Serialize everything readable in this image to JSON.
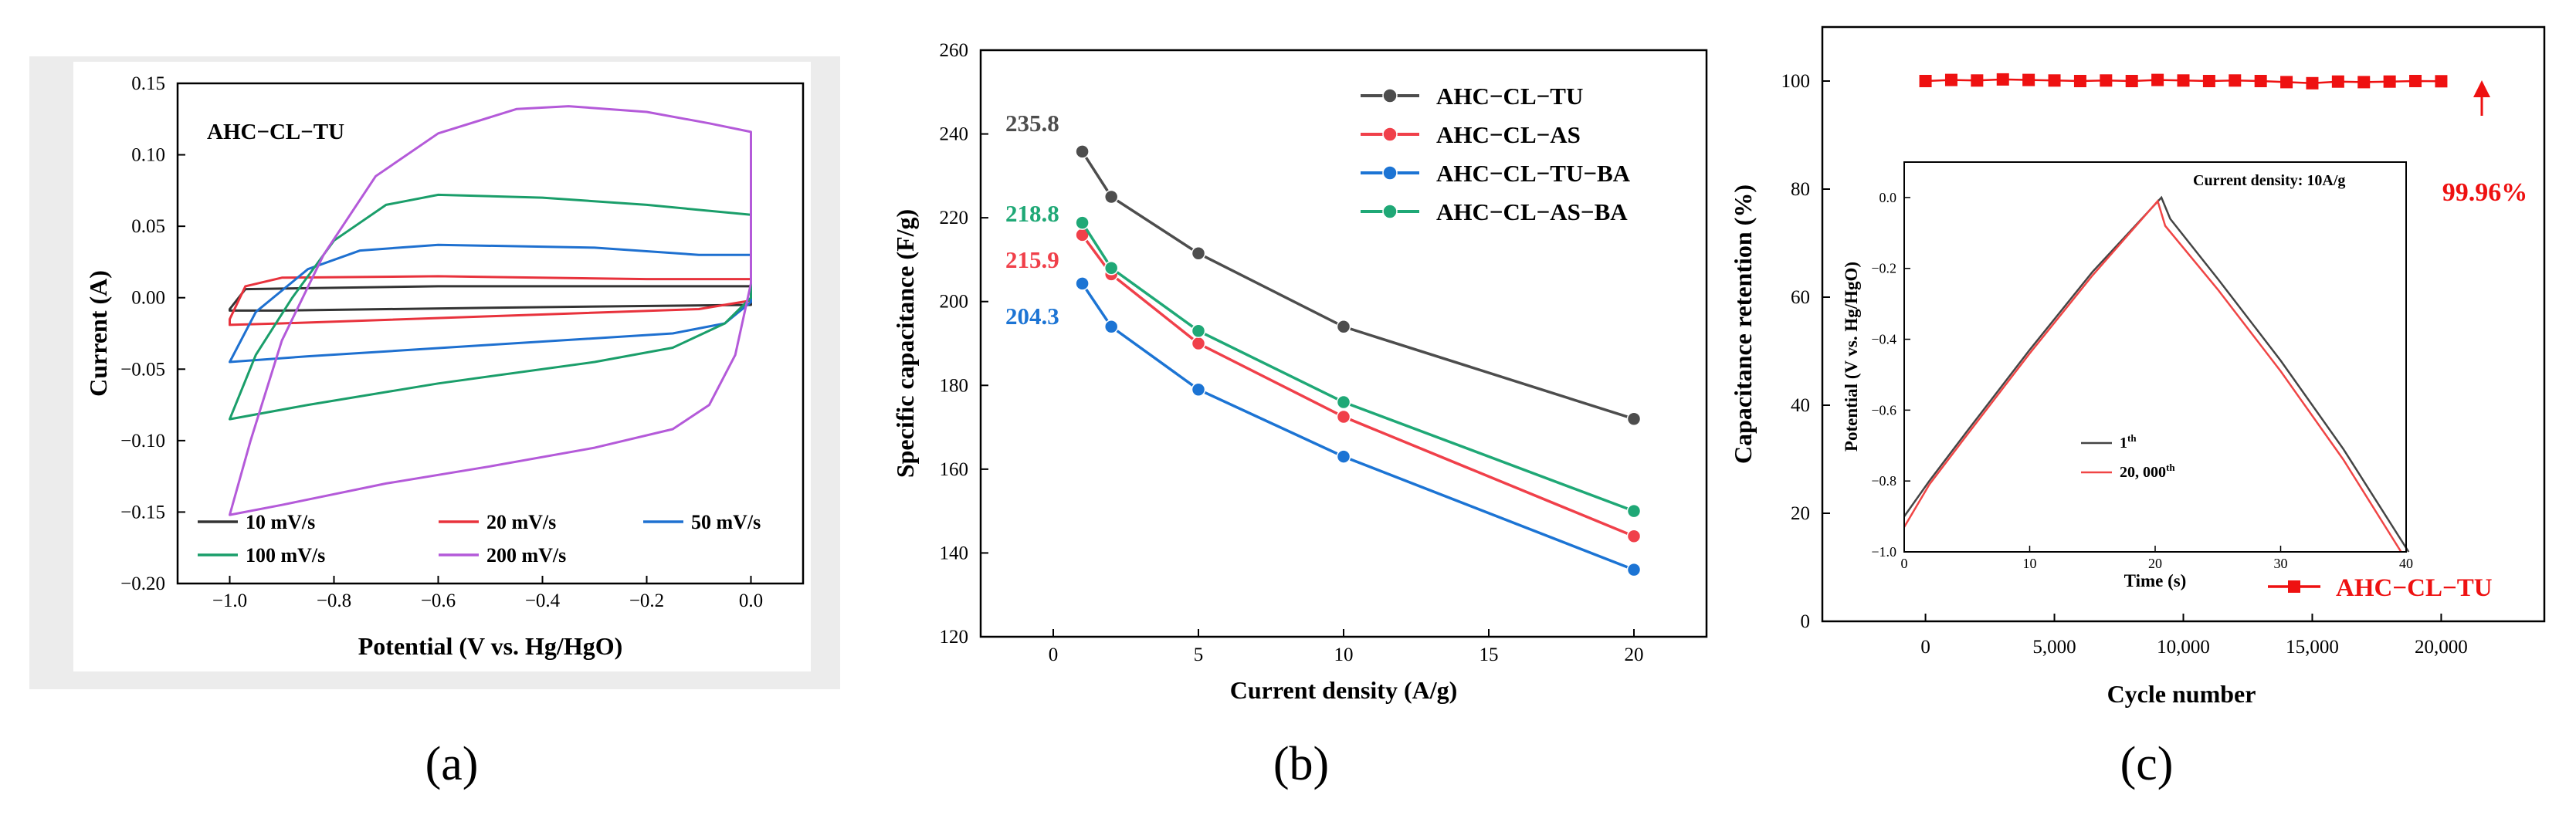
{
  "panels": {
    "a": {
      "caption": "(a)"
    },
    "b": {
      "caption": "(b)"
    },
    "c": {
      "caption": "(c)"
    }
  },
  "chart_data": [
    {
      "type": "line",
      "panel": "a",
      "title": "AHC−CL−TU",
      "xlabel": "Potential (V vs. Hg/HgO)",
      "ylabel": "Current (A)",
      "xlim": [
        -1.1,
        0.1
      ],
      "ylim": [
        -0.2,
        0.15
      ],
      "xticks": [
        -1.0,
        -0.8,
        -0.6,
        -0.4,
        -0.2,
        0.0
      ],
      "xtick_labels": [
        "−1.0",
        "−0.8",
        "−0.6",
        "−0.4",
        "−0.2",
        "0.0"
      ],
      "yticks": [
        0.15,
        0.1,
        0.05,
        0.0,
        -0.05,
        -0.1,
        -0.15,
        -0.2
      ],
      "ytick_labels": [
        "0.15",
        "0.10",
        "0.05",
        "0.00",
        "−0.05",
        "−0.10",
        "−0.15",
        "−0.20"
      ],
      "legend_position": "bottom",
      "series": [
        {
          "name": "10 mV/s",
          "color": "#333333",
          "upper": [
            [
              -1.0,
              -0.008
            ],
            [
              -0.97,
              0.006
            ],
            [
              -0.6,
              0.008
            ],
            [
              -0.2,
              0.008
            ],
            [
              0.0,
              0.008
            ]
          ],
          "lower": [
            [
              0.0,
              -0.005
            ],
            [
              -0.5,
              -0.007
            ],
            [
              -0.9,
              -0.009
            ],
            [
              -1.0,
              -0.009
            ]
          ]
        },
        {
          "name": "20 mV/s",
          "color": "#e8323c",
          "upper": [
            [
              -1.0,
              -0.015
            ],
            [
              -0.97,
              0.008
            ],
            [
              -0.9,
              0.014
            ],
            [
              -0.6,
              0.015
            ],
            [
              -0.2,
              0.013
            ],
            [
              0.0,
              0.013
            ]
          ],
          "lower": [
            [
              0.0,
              -0.002
            ],
            [
              -0.1,
              -0.008
            ],
            [
              -0.5,
              -0.013
            ],
            [
              -0.9,
              -0.018
            ],
            [
              -1.0,
              -0.019
            ]
          ]
        },
        {
          "name": "50 mV/s",
          "color": "#1e70d0",
          "upper": [
            [
              -1.0,
              -0.045
            ],
            [
              -0.95,
              -0.01
            ],
            [
              -0.85,
              0.02
            ],
            [
              -0.75,
              0.033
            ],
            [
              -0.6,
              0.037
            ],
            [
              -0.3,
              0.035
            ],
            [
              -0.1,
              0.03
            ],
            [
              0.0,
              0.03
            ]
          ],
          "lower": [
            [
              0.0,
              -0.003
            ],
            [
              -0.05,
              -0.018
            ],
            [
              -0.15,
              -0.025
            ],
            [
              -0.5,
              -0.033
            ],
            [
              -0.85,
              -0.041
            ],
            [
              -1.0,
              -0.045
            ]
          ]
        },
        {
          "name": "100 mV/s",
          "color": "#1a9e6a",
          "upper": [
            [
              -1.0,
              -0.085
            ],
            [
              -0.95,
              -0.04
            ],
            [
              -0.88,
              0.0
            ],
            [
              -0.8,
              0.04
            ],
            [
              -0.7,
              0.065
            ],
            [
              -0.6,
              0.072
            ],
            [
              -0.4,
              0.07
            ],
            [
              -0.2,
              0.065
            ],
            [
              0.0,
              0.058
            ]
          ],
          "lower": [
            [
              0.0,
              0.0
            ],
            [
              -0.05,
              -0.018
            ],
            [
              -0.15,
              -0.035
            ],
            [
              -0.3,
              -0.045
            ],
            [
              -0.6,
              -0.06
            ],
            [
              -0.85,
              -0.075
            ],
            [
              -1.0,
              -0.085
            ]
          ]
        },
        {
          "name": "200 mV/s",
          "color": "#b45ad9",
          "upper": [
            [
              -1.0,
              -0.152
            ],
            [
              -0.96,
              -0.1
            ],
            [
              -0.9,
              -0.03
            ],
            [
              -0.82,
              0.03
            ],
            [
              -0.72,
              0.085
            ],
            [
              -0.6,
              0.115
            ],
            [
              -0.45,
              0.132
            ],
            [
              -0.35,
              0.134
            ],
            [
              -0.2,
              0.13
            ],
            [
              -0.08,
              0.122
            ],
            [
              0.0,
              0.116
            ]
          ],
          "lower": [
            [
              0.0,
              0.01
            ],
            [
              -0.03,
              -0.04
            ],
            [
              -0.08,
              -0.075
            ],
            [
              -0.15,
              -0.092
            ],
            [
              -0.3,
              -0.105
            ],
            [
              -0.5,
              -0.118
            ],
            [
              -0.7,
              -0.13
            ],
            [
              -0.9,
              -0.145
            ],
            [
              -1.0,
              -0.152
            ]
          ]
        }
      ]
    },
    {
      "type": "line",
      "panel": "b",
      "xlabel": "Current density (A/g)",
      "ylabel": "Specific capacitance (F/g)",
      "xlim": [
        -2.5,
        22.5
      ],
      "ylim": [
        120,
        260
      ],
      "xticks": [
        0,
        5,
        10,
        15,
        20
      ],
      "yticks": [
        120,
        140,
        160,
        180,
        200,
        220,
        240,
        260
      ],
      "legend_position": "top-right",
      "x": [
        1,
        2,
        5,
        10,
        20
      ],
      "series": [
        {
          "name": "AHC−CL−TU",
          "color": "#4d4d4d",
          "values": [
            235.8,
            225,
            211.5,
            194,
            172
          ],
          "label": "235.8"
        },
        {
          "name": "AHC−CL−AS",
          "color": "#f0404a",
          "values": [
            215.9,
            206.5,
            190,
            172.5,
            144
          ],
          "label": "215.9"
        },
        {
          "name": "AHC−CL−TU−BA",
          "color": "#1c74d4",
          "values": [
            204.3,
            194,
            179,
            163,
            136
          ],
          "label": "204.3"
        },
        {
          "name": "AHC−CL−AS−BA",
          "color": "#1fa876",
          "values": [
            218.8,
            208,
            193,
            176,
            150
          ],
          "label": "218.8"
        }
      ]
    },
    {
      "type": "scatter",
      "panel": "c",
      "xlabel": "Cycle number",
      "ylabel": "Capacitance retention (%)",
      "xlim": [
        -4000,
        24000
      ],
      "ylim": [
        0,
        110
      ],
      "xticks": [
        0,
        5000,
        10000,
        15000,
        20000
      ],
      "xtick_labels": [
        "0",
        "5,000",
        "10,000",
        "15,000",
        "20,000"
      ],
      "yticks": [
        0,
        20,
        40,
        60,
        80,
        100
      ],
      "legend_position": "bottom-right",
      "annotation": "99.96%",
      "series": [
        {
          "name": "AHC−CL−TU",
          "color": "#ee1111",
          "x": [
            0,
            1000,
            2000,
            3000,
            4000,
            5000,
            6000,
            7000,
            8000,
            9000,
            10000,
            11000,
            12000,
            13000,
            14000,
            15000,
            16000,
            17000,
            18000,
            19000,
            20000
          ],
          "values": [
            100,
            100.2,
            100.1,
            100.3,
            100.2,
            100.1,
            100,
            100.1,
            100,
            100.2,
            100.1,
            100,
            100.1,
            100,
            99.8,
            99.6,
            99.9,
            99.8,
            99.9,
            100,
            99.96
          ]
        }
      ],
      "inset": {
        "type": "line",
        "title": "Current density: 10A/g",
        "xlabel": "Time (s)",
        "ylabel": "Potential (V vs. Hg/HgO)",
        "xlim": [
          0,
          40
        ],
        "ylim": [
          -1.0,
          0.1
        ],
        "xticks": [
          0,
          10,
          20,
          30,
          40
        ],
        "yticks": [
          0.0,
          -0.2,
          -0.4,
          -0.6,
          -0.8,
          -1.0
        ],
        "ytick_labels": [
          "0.0",
          "−0.2",
          "−0.4",
          "−0.6",
          "−0.8",
          "−1.0"
        ],
        "series": [
          {
            "name": "1",
            "name_sup": "th",
            "color": "#444444",
            "points": [
              [
                0,
                -0.9
              ],
              [
                2,
                -0.8
              ],
              [
                5,
                -0.66
              ],
              [
                10,
                -0.43
              ],
              [
                15,
                -0.21
              ],
              [
                20.5,
                0.0
              ],
              [
                21.2,
                -0.06
              ],
              [
                25,
                -0.23
              ],
              [
                30,
                -0.46
              ],
              [
                35,
                -0.71
              ],
              [
                40.2,
                -1.0
              ]
            ]
          },
          {
            "name": "20, 000",
            "name_sup": "th",
            "color": "#f04545",
            "points": [
              [
                0,
                -0.93
              ],
              [
                2,
                -0.81
              ],
              [
                5,
                -0.67
              ],
              [
                10,
                -0.44
              ],
              [
                15,
                -0.22
              ],
              [
                20.2,
                -0.01
              ],
              [
                20.8,
                -0.08
              ],
              [
                25,
                -0.26
              ],
              [
                30,
                -0.49
              ],
              [
                35,
                -0.74
              ],
              [
                39.6,
                -1.0
              ]
            ]
          }
        ]
      }
    }
  ]
}
